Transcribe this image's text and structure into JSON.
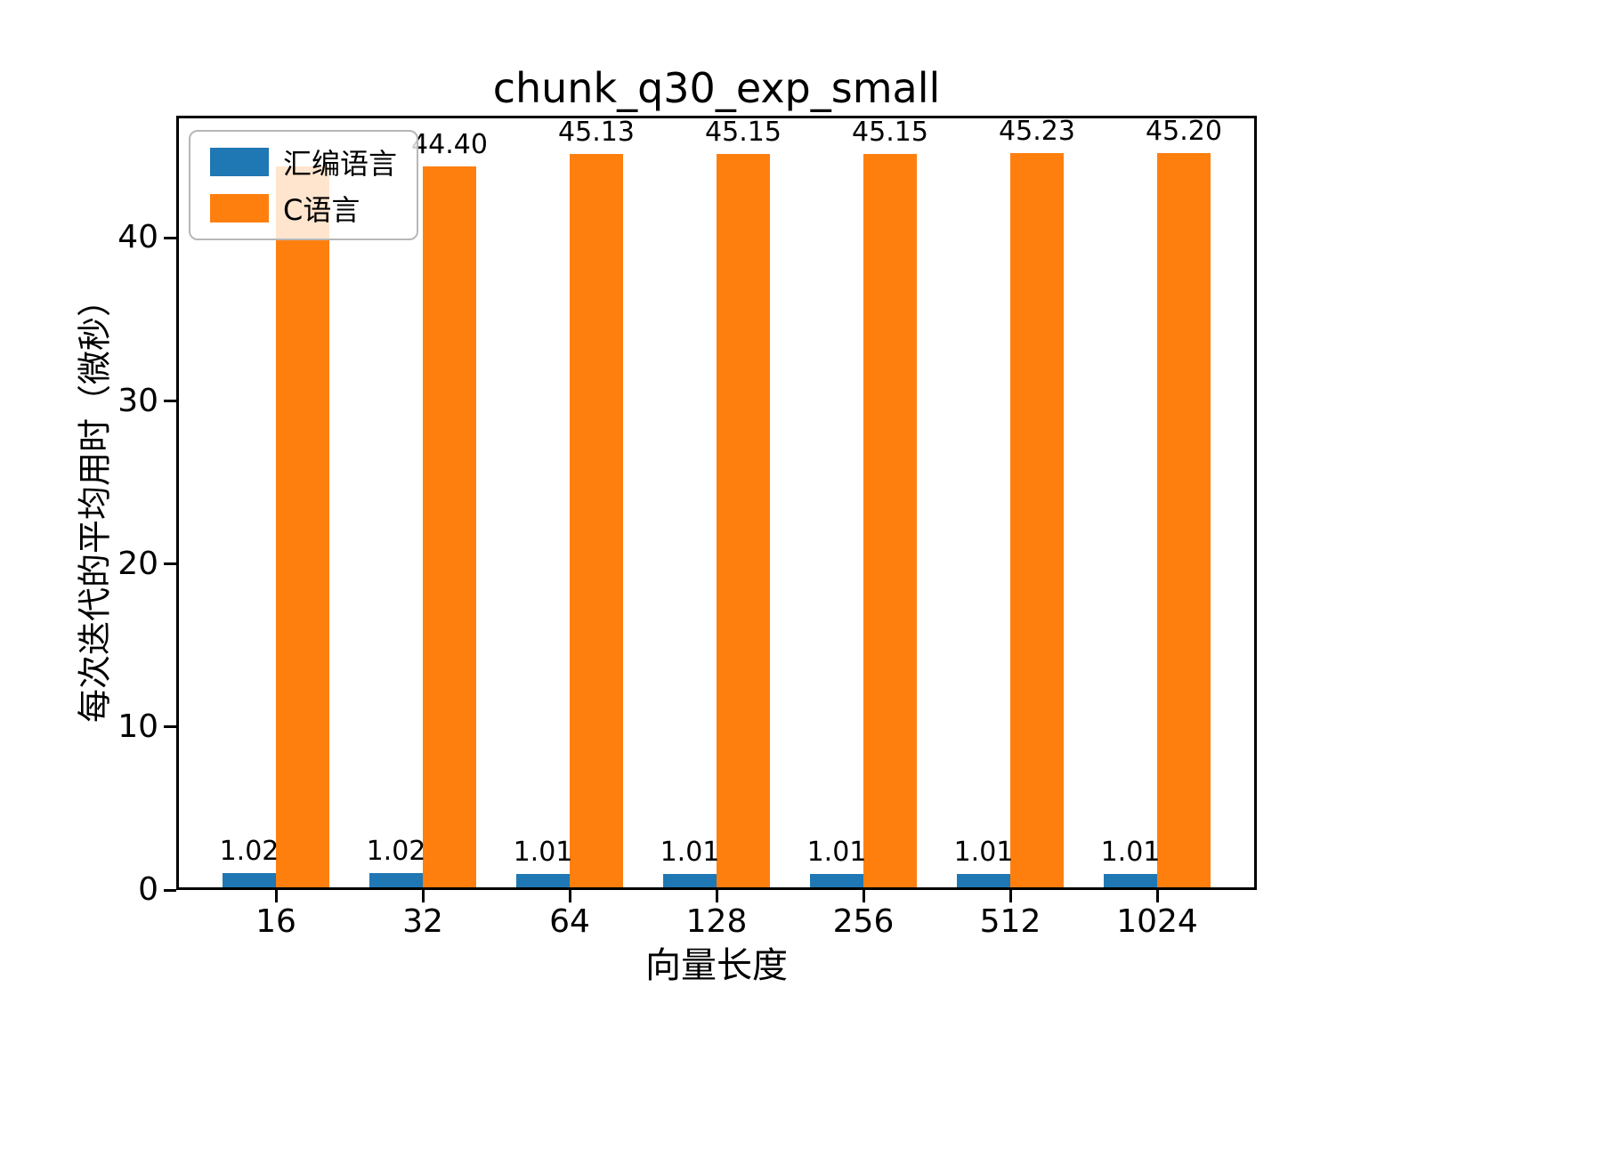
{
  "chart_data": {
    "type": "bar",
    "title": "chunk_q30_exp_small",
    "xlabel": "向量长度",
    "ylabel": "每次迭代的平均用时（微秒）",
    "categories": [
      "16",
      "32",
      "64",
      "128",
      "256",
      "512",
      "1024"
    ],
    "series": [
      {
        "name": "汇编语言",
        "color": "#1f77b4",
        "values": [
          1.02,
          1.02,
          1.01,
          1.01,
          1.01,
          1.01,
          1.01
        ],
        "labels": [
          "1.02",
          "1.02",
          "1.01",
          "1.01",
          "1.01",
          "1.01",
          "1.01"
        ]
      },
      {
        "name": "C语言",
        "color": "#ff7f0e",
        "values": [
          44.4,
          44.4,
          45.13,
          45.15,
          45.15,
          45.23,
          45.2
        ],
        "labels": [
          "",
          "44.40",
          "45.13",
          "45.15",
          "45.15",
          "45.23",
          "45.20"
        ]
      }
    ],
    "ylim": [
      0,
      47.5
    ],
    "yticks": [
      0,
      10,
      20,
      30,
      40
    ],
    "grid": false,
    "legend_position": "upper left"
  }
}
